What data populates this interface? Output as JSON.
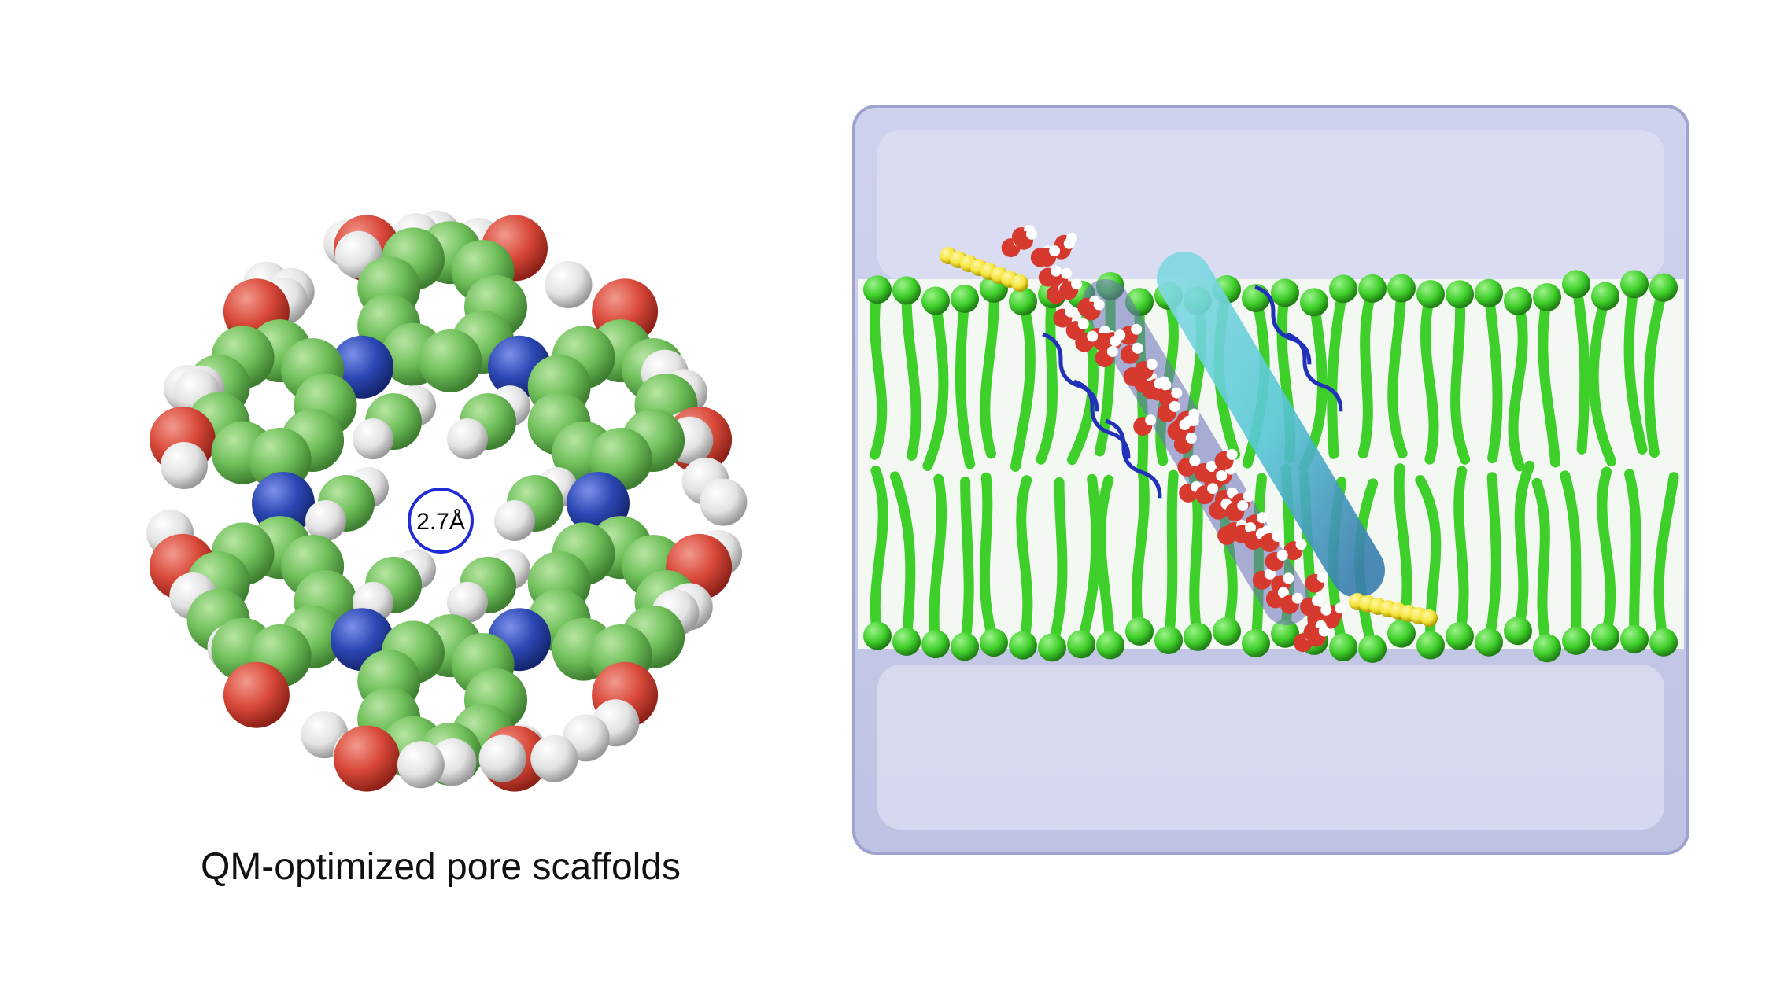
{
  "caption": "QM-optimized pore scaffolds",
  "pore_diameter_label": "2.7Å",
  "colors": {
    "carbon": "#6fbf5a",
    "oxygen": "#d9493a",
    "nitrogen": "#2b47b3",
    "hydrogen": "#e6e6e6",
    "lipid": "#3fcf2a",
    "water_box": "#c9cde8",
    "helix_cyan": "#58c8d6",
    "helix_blue": "#2232b8",
    "tail_yellow": "#f5e43a",
    "pore_circle": "#1f2bd6"
  },
  "icons": [
    "molecular-scaffold-image",
    "membrane-simulation-image"
  ]
}
